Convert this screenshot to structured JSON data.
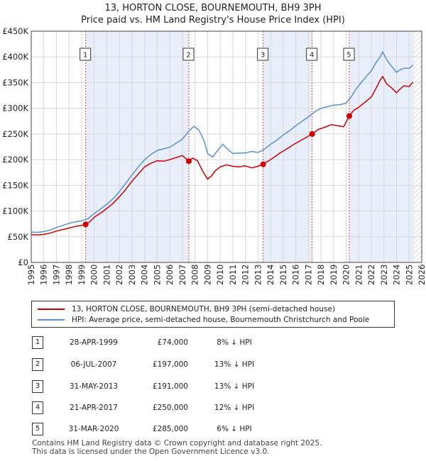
{
  "colors": {
    "property_line": "#cc0000",
    "hpi_line": "#5b8fd0",
    "shade": "#e8eefa",
    "grid": "#d8d8d8",
    "marker_line": "#dd4444"
  },
  "chart_data": {
    "type": "line",
    "title": "13, HORTON CLOSE, BOURNEMOUTH, BH9 3PH",
    "subtitle": "Price paid vs. HM Land Registry's House Price Index (HPI)",
    "x_ticks": [
      1995,
      1996,
      1997,
      1998,
      1999,
      2000,
      2001,
      2002,
      2003,
      2004,
      2005,
      2006,
      2007,
      2008,
      2009,
      2010,
      2011,
      2012,
      2013,
      2014,
      2015,
      2016,
      2017,
      2018,
      2019,
      2020,
      2021,
      2022,
      2023,
      2024,
      2025,
      2026
    ],
    "xlim": [
      1995,
      2026
    ],
    "ylim": [
      0,
      450000
    ],
    "y_ticks": [
      0,
      50000,
      100000,
      150000,
      200000,
      250000,
      300000,
      350000,
      400000,
      450000
    ],
    "y_tick_labels": [
      "£0",
      "£50K",
      "£100K",
      "£150K",
      "£200K",
      "£250K",
      "£300K",
      "£350K",
      "£400K",
      "£450K"
    ],
    "data_end": 2025.4,
    "series": [
      {
        "name": "13, HORTON CLOSE, BOURNEMOUTH, BH9 3PH (semi-detached house)",
        "color_key": "property_line",
        "x": [
          1995.0,
          1995.5,
          1996.0,
          1996.5,
          1997.0,
          1997.5,
          1998.0,
          1998.5,
          1999.0,
          1999.32,
          1999.7,
          2000.0,
          2000.5,
          2001.0,
          2001.5,
          2002.0,
          2002.5,
          2003.0,
          2003.5,
          2004.0,
          2004.5,
          2005.0,
          2005.5,
          2006.0,
          2006.5,
          2007.0,
          2007.51,
          2007.8,
          2008.2,
          2008.6,
          2009.0,
          2009.3,
          2009.6,
          2010.0,
          2010.5,
          2011.0,
          2011.5,
          2012.0,
          2012.5,
          2013.0,
          2013.41,
          2013.8,
          2014.3,
          2014.8,
          2015.3,
          2015.8,
          2016.3,
          2016.8,
          2017.3,
          2017.8,
          2018.3,
          2018.8,
          2019.3,
          2019.8,
          2020.25,
          2020.6,
          2021.0,
          2021.5,
          2022.0,
          2022.4,
          2022.7,
          2022.9,
          2023.2,
          2023.6,
          2024.0,
          2024.3,
          2024.6,
          2025.0,
          2025.3
        ],
        "y": [
          54000,
          53500,
          54500,
          57000,
          61000,
          64000,
          67000,
          70000,
          72000,
          74000,
          80000,
          88000,
          96000,
          105000,
          115000,
          128000,
          142000,
          158000,
          172000,
          186000,
          193000,
          198000,
          197000,
          200000,
          204000,
          208000,
          197000,
          203000,
          198000,
          178000,
          162000,
          168000,
          178000,
          186000,
          190000,
          187000,
          186000,
          188000,
          184000,
          187000,
          191000,
          197000,
          205000,
          214000,
          221000,
          229000,
          236000,
          243000,
          250000,
          259000,
          263000,
          268000,
          266000,
          264000,
          285000,
          296000,
          302000,
          312000,
          322000,
          340000,
          355000,
          362000,
          348000,
          340000,
          330000,
          338000,
          344000,
          342000,
          351000
        ]
      },
      {
        "name": "HPI: Average price, semi-detached house, Bournemouth Christchurch and Poole",
        "color_key": "hpi_line",
        "x": [
          1995.0,
          1995.5,
          1996.0,
          1996.5,
          1997.0,
          1997.5,
          1998.0,
          1998.5,
          1999.0,
          1999.5,
          2000.0,
          2000.5,
          2001.0,
          2001.5,
          2002.0,
          2002.5,
          2003.0,
          2003.5,
          2004.0,
          2004.5,
          2005.0,
          2005.5,
          2006.0,
          2006.5,
          2007.0,
          2007.5,
          2007.9,
          2008.3,
          2008.7,
          2009.0,
          2009.4,
          2009.8,
          2010.2,
          2010.6,
          2011.0,
          2011.5,
          2012.0,
          2012.5,
          2013.0,
          2013.5,
          2014.0,
          2014.5,
          2015.0,
          2015.5,
          2016.0,
          2016.5,
          2017.0,
          2017.5,
          2018.0,
          2018.5,
          2019.0,
          2019.5,
          2020.0,
          2020.4,
          2020.8,
          2021.2,
          2021.6,
          2022.0,
          2022.4,
          2022.7,
          2022.9,
          2023.2,
          2023.6,
          2024.0,
          2024.3,
          2024.6,
          2025.0,
          2025.3
        ],
        "y": [
          59000,
          58500,
          60000,
          63000,
          68000,
          72000,
          76000,
          79000,
          81000,
          85000,
          95000,
          104000,
          113000,
          124000,
          138000,
          154000,
          170000,
          186000,
          200000,
          210000,
          218000,
          221000,
          224000,
          232000,
          240000,
          255000,
          265000,
          258000,
          238000,
          212000,
          205000,
          218000,
          230000,
          220000,
          212000,
          213000,
          213000,
          216000,
          214000,
          220000,
          230000,
          238000,
          248000,
          256000,
          266000,
          275000,
          283000,
          293000,
          300000,
          303000,
          306000,
          307000,
          310000,
          322000,
          338000,
          350000,
          362000,
          373000,
          390000,
          400000,
          410000,
          395000,
          382000,
          370000,
          375000,
          378000,
          378000,
          384000
        ]
      }
    ],
    "sales": [
      {
        "label": "1",
        "x": 1999.32,
        "price": 74000
      },
      {
        "label": "2",
        "x": 2007.51,
        "price": 197000
      },
      {
        "label": "3",
        "x": 2013.41,
        "price": 191000
      },
      {
        "label": "4",
        "x": 2017.3,
        "price": 250000
      },
      {
        "label": "5",
        "x": 2020.25,
        "price": 285000
      }
    ],
    "shaded_ranges": [
      [
        1999.32,
        2007.51
      ],
      [
        2013.41,
        2017.3
      ],
      [
        2020.25,
        2025.4
      ]
    ]
  },
  "legend": {
    "property": "13, HORTON CLOSE, BOURNEMOUTH, BH9 3PH (semi-detached house)",
    "hpi": "HPI: Average price, semi-detached house, Bournemouth Christchurch and Poole"
  },
  "table": [
    {
      "num": "1",
      "date": "28-APR-1999",
      "price": "£74,000",
      "hpi": "8% ↓ HPI"
    },
    {
      "num": "2",
      "date": "06-JUL-2007",
      "price": "£197,000",
      "hpi": "13% ↓ HPI"
    },
    {
      "num": "3",
      "date": "31-MAY-2013",
      "price": "£191,000",
      "hpi": "13% ↓ HPI"
    },
    {
      "num": "4",
      "date": "21-APR-2017",
      "price": "£250,000",
      "hpi": "12% ↓ HPI"
    },
    {
      "num": "5",
      "date": "31-MAR-2020",
      "price": "£285,000",
      "hpi": "6% ↓ HPI"
    }
  ],
  "footer": {
    "line1": "Contains HM Land Registry data © Crown copyright and database right 2025.",
    "line2": "This data is licensed under the Open Government Licence v3.0."
  }
}
